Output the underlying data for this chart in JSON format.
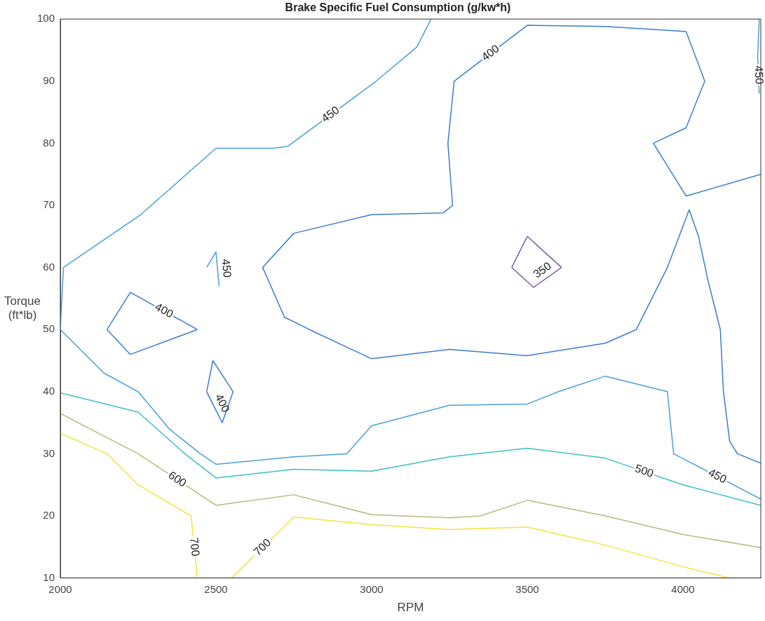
{
  "chart_data": {
    "type": "line",
    "title": "Brake Specific Fuel Consumption (g/kw*h)",
    "xlabel": "RPM",
    "ylabel": "Torque\n(ft*lb)",
    "xlim": [
      2000,
      4250
    ],
    "xticks": [
      2000,
      2500,
      3000,
      3500,
      4000
    ],
    "ylim": [
      10,
      100
    ],
    "yticks": [
      10,
      20,
      30,
      40,
      50,
      60,
      70,
      80,
      90,
      100
    ],
    "grid": false,
    "legend": false,
    "marker": "none",
    "line_style": "solid",
    "series": [
      {
        "name": "450",
        "color": "#4a9fd8",
        "x": [
          2000,
          2010,
          2258,
          2500,
          2684,
          2730,
          3007,
          3145,
          3191
        ],
        "values": [
          50,
          60,
          68.5,
          79.2,
          79.2,
          79.5,
          89.7,
          95.5,
          100
        ]
      },
      {
        "name": "450",
        "color": "#4a9fd8",
        "x": [
          2000,
          2140,
          2250,
          2350,
          2450,
          2500,
          2750,
          2920,
          3000,
          3250,
          3500,
          3600,
          3750,
          3950,
          3970,
          4250
        ],
        "values": [
          50,
          43,
          40,
          34,
          30,
          28.3,
          29.5,
          30,
          34.5,
          37.8,
          38,
          40,
          42.5,
          40,
          30,
          22.7
        ]
      },
      {
        "name": "450",
        "color": "#4a9fd8",
        "x": [
          2470,
          2500,
          2510
        ],
        "values": [
          60,
          62.5,
          57
        ]
      },
      {
        "name": "450",
        "color": "#4a9fd8",
        "x": [
          4245,
          4240,
          4245
        ],
        "values": [
          100,
          94,
          88
        ]
      },
      {
        "name": "400",
        "color": "#3a7dd0",
        "x": [
          4250,
          4175,
          4150,
          4130,
          4120,
          4080,
          4050,
          4020,
          3950,
          3850,
          3750,
          3500,
          3250,
          3000,
          2800,
          2720,
          2650,
          2750,
          3000,
          3230,
          3260,
          3245,
          3265,
          3500,
          3750,
          3950,
          4010,
          4070,
          4010,
          3905,
          4010,
          4250
        ],
        "values": [
          28.5,
          30,
          32,
          40,
          50,
          58,
          65,
          69.3,
          60,
          50,
          47.8,
          45.8,
          46.8,
          45.3,
          50,
          52,
          60,
          65.5,
          68.5,
          68.8,
          70,
          80,
          90,
          99,
          98.8,
          98.2,
          98,
          90,
          82.5,
          80,
          71.5,
          75
        ]
      },
      {
        "name": "400",
        "color": "#3a7dd0",
        "x": [
          2150,
          2225,
          2440
        ],
        "values": [
          50,
          56,
          50
        ]
      },
      {
        "color": "#3a7dd0",
        "x": [
          2440,
          2225,
          2150
        ],
        "values": [
          50,
          46,
          50
        ]
      },
      {
        "name": "400",
        "color": "#3a7dd0",
        "x": [
          2470,
          2520,
          2555
        ],
        "values": [
          40,
          35,
          40
        ]
      },
      {
        "color": "#3a7dd0",
        "x": [
          2555,
          2490,
          2470
        ],
        "values": [
          40,
          45,
          40
        ]
      },
      {
        "name": "350",
        "color": "#7e5fa8",
        "x": [
          3450,
          3520,
          3610
        ],
        "values": [
          60,
          56.8,
          60
        ]
      },
      {
        "color": "#7e5fa8",
        "x": [
          3610,
          3500,
          3450
        ],
        "values": [
          60,
          65,
          60
        ]
      },
      {
        "name": "500",
        "color": "#3dbfc4",
        "x": [
          2000,
          2250,
          2400,
          2500,
          2750,
          3000,
          3250,
          3500,
          3750,
          4000,
          4250
        ],
        "values": [
          39.8,
          36.7,
          30,
          26.1,
          27.5,
          27.2,
          29.5,
          30.9,
          29.3,
          25,
          21.7
        ]
      },
      {
        "name": "600",
        "color": "#b9b97a",
        "x": [
          2000,
          2250,
          2500,
          2750,
          3000,
          3250,
          3350,
          3500,
          3750,
          4000,
          4250
        ],
        "values": [
          36.5,
          30,
          21.7,
          23.4,
          20.2,
          19.7,
          20,
          22.5,
          20,
          17,
          14.9
        ]
      },
      {
        "name": "700",
        "color": "#efe53c",
        "x": [
          2000,
          2150,
          2250,
          2420,
          2440
        ],
        "values": [
          33.3,
          30,
          25,
          20,
          10
        ]
      },
      {
        "name": "700",
        "color": "#efe53c",
        "x": [
          2550,
          2750,
          3000,
          3250,
          3500,
          3750,
          4000,
          4150
        ],
        "values": [
          10,
          19.8,
          18.6,
          17.8,
          18.2,
          15.3,
          11.8,
          10
        ]
      }
    ]
  }
}
